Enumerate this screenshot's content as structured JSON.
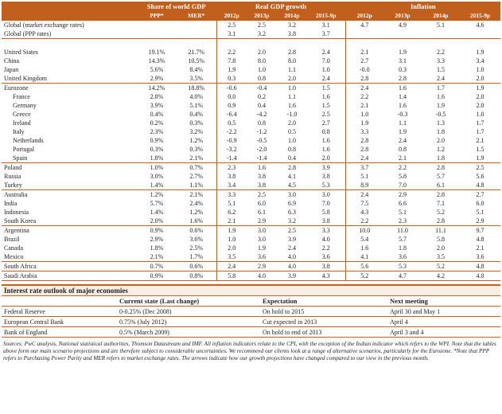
{
  "table": {
    "group_headers": [
      "Share of world GDP",
      "Real GDP growth",
      "Inflation"
    ],
    "sub_headers": [
      "PPP*",
      "MER*",
      "2012p",
      "2013p",
      "2014p",
      "2015-9p",
      "2012p",
      "2013p",
      "2014p",
      "2015-9p"
    ],
    "groups": [
      {
        "rows": [
          {
            "label": "Global (market exchange rates)",
            "cells": [
              null,
              null,
              "2.5",
              "2.5",
              "3.2",
              "3.1",
              "4.7",
              "4.9",
              "5.1",
              "4.6"
            ]
          },
          {
            "label": "Global (PPP rates)",
            "cells": [
              null,
              null,
              "3.1",
              "3.2",
              "3.8",
              "3.7",
              null,
              null,
              null,
              null
            ]
          }
        ]
      },
      {
        "rows": [
          {
            "label": "United States",
            "cells": [
              "19.1%",
              "21.7%",
              "2.2",
              "2.0",
              "2.8",
              "2.4",
              "2.1",
              "1.9",
              "2.2",
              "1.9"
            ]
          },
          {
            "label": "China",
            "cells": [
              "14.3%",
              "10.5%",
              "7.8",
              "8.0",
              "8.0",
              "7.0",
              "2.7",
              "3.1",
              "3.3",
              "3.4"
            ]
          },
          {
            "label": "Japan",
            "cells": [
              "5.6%",
              "8.4%",
              "1.9",
              "1.0",
              "1.1",
              "1.0",
              "-0.0",
              "0.3",
              "1.5",
              "1.0"
            ]
          },
          {
            "label": "United Kingdom",
            "cells": [
              "2.9%",
              "3.5%",
              "0.3",
              "0.8",
              "2.0",
              "2.4",
              "2.8",
              "2.8",
              "2.4",
              "2.0"
            ]
          }
        ]
      },
      {
        "rows": [
          {
            "label": "Eurozone",
            "cells": [
              "14.2%",
              "18.8%",
              "-0.6",
              "-0.4",
              "1.0",
              "1.5",
              "2.4",
              "1.6",
              "1.7",
              "1.9"
            ]
          },
          {
            "label": "France",
            "cells": [
              "2.8%",
              "4.0%",
              "0.0",
              "0.2",
              "1.1",
              "1.6",
              "2.2",
              "1.4",
              "1.6",
              "2.0"
            ]
          },
          {
            "label": "Germany",
            "cells": [
              "3.9%",
              "5.1%",
              "0.9",
              "0.4",
              "1.6",
              "1.5",
              "2.1",
              "1.6",
              "1.9",
              "2.0"
            ]
          },
          {
            "label": "Greece",
            "cells": [
              "0.4%",
              "0.4%",
              "-6.4",
              "-4.2",
              "-1.0",
              "2.5",
              "1.0",
              "-0.3",
              "-0.5",
              "1.0"
            ]
          },
          {
            "label": "Ireland",
            "cells": [
              "0.2%",
              "0.3%",
              "0.5",
              "0.8",
              "2.0",
              "2.7",
              "1.9",
              "1.1",
              "1.3",
              "1.7"
            ]
          },
          {
            "label": "Italy",
            "cells": [
              "2.3%",
              "3.2%",
              "-2.2",
              "-1.2",
              "0.5",
              "0.8",
              "3.3",
              "1.9",
              "1.8",
              "1.7"
            ]
          },
          {
            "label": "Netherlands",
            "cells": [
              "0.9%",
              "1.2%",
              "-0.9",
              "-0.5",
              "1.0",
              "1.6",
              "2.8",
              "2.4",
              "2.0",
              "2.1"
            ]
          },
          {
            "label": "Portugal",
            "cells": [
              "0.3%",
              "0.3%",
              "-3.2",
              "-2.0",
              "0.8",
              "1.6",
              "2.8",
              "0.8",
              "1.2",
              "1.5"
            ]
          },
          {
            "label": "Spain",
            "cells": [
              "1.8%",
              "2.1%",
              "-1.4",
              "-1.4",
              "0.4",
              "2.0",
              "2.4",
              "2.1",
              "1.8",
              "1.9"
            ]
          }
        ]
      },
      {
        "rows": [
          {
            "label": "Poland",
            "cells": [
              "1.0%",
              "0.7%",
              "2.3",
              "1.6",
              "2.8",
              "3.9",
              "3.7",
              "2.2",
              "2.8",
              "2.5"
            ]
          },
          {
            "label": "Russia",
            "cells": [
              "3.0%",
              "2.7%",
              "3.8",
              "3.8",
              "4.1",
              "3.8",
              "5.1",
              "5.8",
              "5.7",
              "5.6"
            ]
          },
          {
            "label": "Turkey",
            "cells": [
              "1.4%",
              "1.1%",
              "3.4",
              "3.8",
              "4.5",
              "5.3",
              "8.9",
              "7.0",
              "6.1",
              "4.8"
            ]
          }
        ]
      },
      {
        "rows": [
          {
            "label": "Australia",
            "cells": [
              "1.2%",
              "2.1%",
              "3.3",
              "2.5",
              "3.0",
              "3.0",
              "2.4",
              "2.9",
              "2.8",
              "2.7"
            ]
          },
          {
            "label": "India",
            "cells": [
              "5.7%",
              "2.4%",
              "5.1",
              "6.0",
              "6.9",
              "7.0",
              "7.5",
              "6.6",
              "7.1",
              "6.0"
            ]
          },
          {
            "label": "Indonesia",
            "cells": [
              "1.4%",
              "1.2%",
              "6.2",
              "6.1",
              "6.3",
              "5.8",
              "4.3",
              "5.1",
              "5.2",
              "5.1"
            ]
          },
          {
            "label": "South Korea",
            "cells": [
              "2.0%",
              "1.6%",
              "2.1",
              "2.9",
              "3.2",
              "3.8",
              "2.2",
              "2.3",
              "2.8",
              "2.9"
            ]
          }
        ]
      },
      {
        "rows": [
          {
            "label": "Argentina",
            "cells": [
              "0.9%",
              "0.6%",
              "1.9",
              "3.0",
              "2.5",
              "3.3",
              "10.0",
              "11.0",
              "11.1",
              "9.7"
            ]
          },
          {
            "label": "Brazil",
            "cells": [
              "2.9%",
              "3.6%",
              "1.0",
              "3.0",
              "3.9",
              "4.0",
              "5.4",
              "5.7",
              "5.8",
              "4.8"
            ]
          },
          {
            "label": "Canada",
            "cells": [
              "1.8%",
              "2.5%",
              "2.0",
              "1.9",
              "2.4",
              "2.2",
              "1.6",
              "1.8",
              "2.0",
              "2.1"
            ]
          },
          {
            "label": "Mexico",
            "cells": [
              "2.1%",
              "1.7%",
              "3.5",
              "3.6",
              "4.0",
              "3.6",
              "4.1",
              "3.6",
              "3.5",
              "3.6"
            ]
          }
        ]
      },
      {
        "rows": [
          {
            "label": "South Africa",
            "cells": [
              "0.7%",
              "0.6%",
              "2.4",
              "2.9",
              "4.0",
              "3.8",
              "5.6",
              "5.3",
              "5.2",
              "4.8"
            ]
          }
        ]
      },
      {
        "rows": [
          {
            "label": "Saudi Arabia",
            "cells": [
              "0.9%",
              "0.8%",
              "5.8",
              "4.0",
              "3.9",
              "4.3",
              "5.2",
              "4.7",
              "4.2",
              "4.0"
            ]
          }
        ]
      }
    ]
  },
  "interest": {
    "title": "Interest rate outlook of major economies",
    "headers": [
      "Current state (Last change)",
      "Expectation",
      "Next meeting"
    ],
    "rows": [
      [
        "Federal Reserve",
        "0-0.25% (Dec 2008)",
        "On hold to 2015",
        "April 30 and May 1"
      ],
      [
        "European Central Bank",
        "0.75% (July 2012)",
        "Cut expected in 2013",
        "April 4"
      ],
      [
        "Bank of England",
        "0.5% (March 2009)",
        "On hold to end of 2013",
        "April 3 and 4"
      ]
    ]
  },
  "footnote": "Sources: PwC analysis, National statistical authorities, Thomson Datastream and IMF. All inflation indicators relate to the CPI, with the exception of the Indian indicator which refers to the WPI. Note that the tables above form our main scenario projections and are therefore subject to considerable uncertainties. We recommend our clients look at a range of alternative scenarios, particularly for the Eurozone. *Note that PPP refers to Purchasing Power Parity and MER refers to market exchange rates. The arrows indicate how our growth projections have changed compared to our view in the previous month."
}
